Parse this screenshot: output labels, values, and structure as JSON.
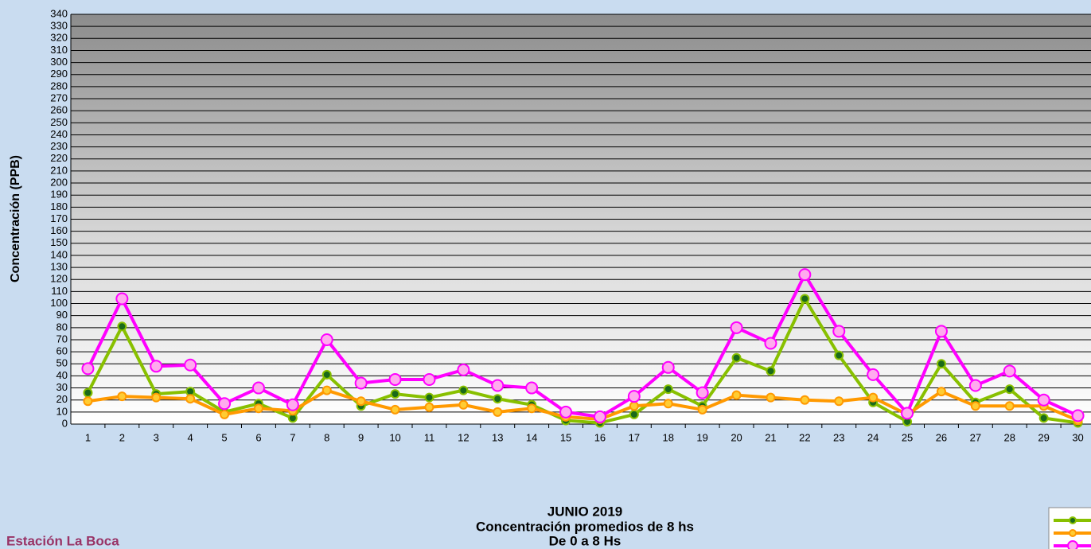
{
  "chart_data": {
    "type": "line",
    "title": "JUNIO 2019",
    "subtitle": [
      "Concentración promedios de 8 hs",
      "De 0 a 8 Hs"
    ],
    "station": "Estación La Boca",
    "y_label": "Concentración  (PPB)",
    "categories": [
      "1",
      "2",
      "3",
      "4",
      "5",
      "6",
      "7",
      "8",
      "9",
      "10",
      "11",
      "12",
      "13",
      "14",
      "15",
      "16",
      "17",
      "18",
      "19",
      "20",
      "21",
      "22",
      "23",
      "24",
      "25",
      "26",
      "27",
      "28",
      "29",
      "30"
    ],
    "series": [
      {
        "color": "#88c000",
        "marker": "#1a6a1a",
        "values": [
          26,
          81,
          25,
          27,
          10,
          17,
          5,
          41,
          15,
          25,
          22,
          28,
          21,
          16,
          3,
          1,
          8,
          29,
          15,
          55,
          44,
          104,
          57,
          18,
          2,
          50,
          18,
          29,
          5,
          1
        ]
      },
      {
        "color": "#ff9900",
        "marker": "#ffcc33",
        "values": [
          19,
          23,
          22,
          21,
          8,
          13,
          11,
          28,
          19,
          12,
          14,
          16,
          10,
          13,
          6,
          4,
          15,
          17,
          12,
          24,
          22,
          20,
          19,
          22,
          8,
          27,
          15,
          15,
          15,
          3
        ]
      },
      {
        "color": "#ff00ff",
        "marker": "#ffaaee",
        "values": [
          46,
          104,
          48,
          49,
          17,
          30,
          16,
          70,
          34,
          37,
          37,
          45,
          32,
          30,
          10,
          6,
          23,
          47,
          26,
          80,
          67,
          124,
          77,
          41,
          9,
          77,
          32,
          44,
          20,
          7
        ]
      }
    ],
    "ylim": [
      0,
      340
    ],
    "yticks": [
      0,
      10,
      20,
      30,
      40,
      50,
      60,
      70,
      80,
      90,
      100,
      110,
      120,
      130,
      140,
      150,
      160,
      170,
      180,
      190,
      200,
      210,
      220,
      230,
      240,
      250,
      260,
      270,
      280,
      290,
      300,
      310,
      320,
      330,
      340
    ],
    "grid": true
  }
}
